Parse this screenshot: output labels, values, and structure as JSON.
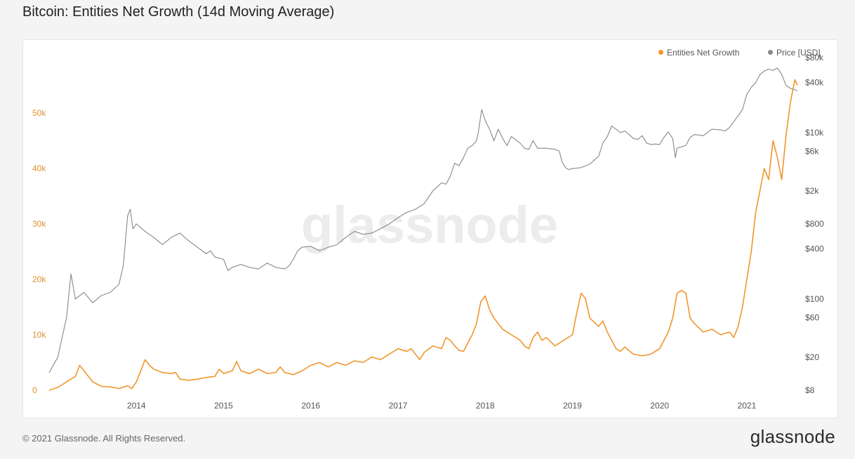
{
  "title": "Bitcoin: Entities Net Growth (14d Moving Average)",
  "watermark": "glassnode",
  "footer": {
    "copyright": "© 2021 Glassnode. All Rights Reserved.",
    "brand": "glassnode"
  },
  "colors": {
    "entities": "#f0962c",
    "price": "#888888",
    "left_axis_text": "#e0922f"
  },
  "chart_data": {
    "type": "line",
    "grid": false,
    "legend_position": "top-right",
    "x_ticks": [
      "2014",
      "2015",
      "2016",
      "2017",
      "2018",
      "2019",
      "2020",
      "2021"
    ],
    "x_range": [
      2013.0,
      2021.58
    ],
    "y_left": {
      "ticks": [
        {
          "value": 0,
          "label": "0"
        },
        {
          "value": 10000,
          "label": "10k"
        },
        {
          "value": 20000,
          "label": "20k"
        },
        {
          "value": 30000,
          "label": "30k"
        },
        {
          "value": 40000,
          "label": "40k"
        },
        {
          "value": 50000,
          "label": "50k"
        }
      ],
      "range": [
        0,
        60000
      ]
    },
    "y_right": {
      "scale": "log",
      "ticks": [
        {
          "value": 8,
          "label": "$8"
        },
        {
          "value": 20,
          "label": "$20"
        },
        {
          "value": 60,
          "label": "$60"
        },
        {
          "value": 100,
          "label": "$100"
        },
        {
          "value": 400,
          "label": "$400"
        },
        {
          "value": 800,
          "label": "$800"
        },
        {
          "value": 2000,
          "label": "$2k"
        },
        {
          "value": 6000,
          "label": "$6k"
        },
        {
          "value": 10000,
          "label": "$10k"
        },
        {
          "value": 40000,
          "label": "$40k"
        },
        {
          "value": 80000,
          "label": "$80k"
        }
      ],
      "range": [
        8,
        80000
      ]
    },
    "series": [
      {
        "name": "Entities Net Growth",
        "axis": "left",
        "points": [
          [
            2013.0,
            0
          ],
          [
            2013.1,
            500
          ],
          [
            2013.2,
            1500
          ],
          [
            2013.3,
            2500
          ],
          [
            2013.35,
            4500
          ],
          [
            2013.4,
            3500
          ],
          [
            2013.5,
            1500
          ],
          [
            2013.6,
            700
          ],
          [
            2013.7,
            600
          ],
          [
            2013.8,
            300
          ],
          [
            2013.9,
            800
          ],
          [
            2013.95,
            300
          ],
          [
            2014.0,
            1500
          ],
          [
            2014.05,
            3500
          ],
          [
            2014.1,
            5500
          ],
          [
            2014.15,
            4500
          ],
          [
            2014.2,
            3800
          ],
          [
            2014.3,
            3200
          ],
          [
            2014.4,
            3000
          ],
          [
            2014.45,
            3200
          ],
          [
            2014.5,
            2000
          ],
          [
            2014.6,
            1800
          ],
          [
            2014.7,
            2000
          ],
          [
            2014.8,
            2300
          ],
          [
            2014.9,
            2500
          ],
          [
            2014.95,
            3800
          ],
          [
            2015.0,
            3000
          ],
          [
            2015.1,
            3500
          ],
          [
            2015.15,
            5200
          ],
          [
            2015.2,
            3500
          ],
          [
            2015.3,
            3000
          ],
          [
            2015.4,
            3800
          ],
          [
            2015.5,
            3000
          ],
          [
            2015.6,
            3200
          ],
          [
            2015.65,
            4200
          ],
          [
            2015.7,
            3200
          ],
          [
            2015.8,
            2800
          ],
          [
            2015.9,
            3500
          ],
          [
            2016.0,
            4500
          ],
          [
            2016.1,
            5000
          ],
          [
            2016.2,
            4200
          ],
          [
            2016.3,
            5000
          ],
          [
            2016.4,
            4500
          ],
          [
            2016.5,
            5300
          ],
          [
            2016.6,
            5000
          ],
          [
            2016.7,
            6000
          ],
          [
            2016.8,
            5500
          ],
          [
            2016.9,
            6500
          ],
          [
            2017.0,
            7500
          ],
          [
            2017.1,
            7000
          ],
          [
            2017.15,
            7500
          ],
          [
            2017.2,
            6500
          ],
          [
            2017.25,
            5500
          ],
          [
            2017.3,
            6800
          ],
          [
            2017.4,
            8000
          ],
          [
            2017.5,
            7500
          ],
          [
            2017.55,
            9500
          ],
          [
            2017.6,
            9000
          ],
          [
            2017.65,
            8000
          ],
          [
            2017.7,
            7200
          ],
          [
            2017.75,
            7000
          ],
          [
            2017.8,
            8500
          ],
          [
            2017.85,
            10000
          ],
          [
            2017.9,
            12000
          ],
          [
            2017.95,
            16000
          ],
          [
            2018.0,
            17000
          ],
          [
            2018.05,
            14500
          ],
          [
            2018.1,
            13000
          ],
          [
            2018.2,
            11000
          ],
          [
            2018.3,
            10000
          ],
          [
            2018.4,
            9000
          ],
          [
            2018.45,
            8000
          ],
          [
            2018.5,
            7500
          ],
          [
            2018.55,
            9500
          ],
          [
            2018.6,
            10500
          ],
          [
            2018.65,
            9000
          ],
          [
            2018.7,
            9500
          ],
          [
            2018.8,
            8000
          ],
          [
            2018.9,
            9000
          ],
          [
            2019.0,
            10000
          ],
          [
            2019.05,
            14000
          ],
          [
            2019.1,
            17500
          ],
          [
            2019.15,
            16500
          ],
          [
            2019.2,
            13000
          ],
          [
            2019.3,
            11500
          ],
          [
            2019.35,
            12500
          ],
          [
            2019.4,
            10500
          ],
          [
            2019.5,
            7500
          ],
          [
            2019.55,
            7000
          ],
          [
            2019.6,
            7800
          ],
          [
            2019.7,
            6500
          ],
          [
            2019.8,
            6200
          ],
          [
            2019.9,
            6500
          ],
          [
            2019.95,
            7000
          ],
          [
            2020.0,
            7500
          ],
          [
            2020.05,
            9000
          ],
          [
            2020.1,
            10500
          ],
          [
            2020.15,
            13000
          ],
          [
            2020.2,
            17500
          ],
          [
            2020.25,
            18000
          ],
          [
            2020.3,
            17500
          ],
          [
            2020.35,
            13000
          ],
          [
            2020.4,
            12000
          ],
          [
            2020.5,
            10500
          ],
          [
            2020.6,
            11000
          ],
          [
            2020.7,
            10000
          ],
          [
            2020.8,
            10500
          ],
          [
            2020.85,
            9500
          ],
          [
            2020.9,
            11500
          ],
          [
            2020.95,
            15000
          ],
          [
            2021.0,
            20000
          ],
          [
            2021.05,
            25000
          ],
          [
            2021.1,
            32000
          ],
          [
            2021.15,
            36000
          ],
          [
            2021.2,
            40000
          ],
          [
            2021.25,
            38000
          ],
          [
            2021.3,
            45000
          ],
          [
            2021.35,
            42000
          ],
          [
            2021.4,
            38000
          ],
          [
            2021.45,
            46000
          ],
          [
            2021.5,
            52000
          ],
          [
            2021.55,
            56000
          ],
          [
            2021.58,
            55000
          ]
        ]
      },
      {
        "name": "Price [USD]",
        "axis": "right",
        "points": [
          [
            2013.0,
            13
          ],
          [
            2013.1,
            20
          ],
          [
            2013.2,
            60
          ],
          [
            2013.25,
            200
          ],
          [
            2013.3,
            100
          ],
          [
            2013.4,
            120
          ],
          [
            2013.5,
            90
          ],
          [
            2013.6,
            110
          ],
          [
            2013.7,
            120
          ],
          [
            2013.8,
            150
          ],
          [
            2013.85,
            250
          ],
          [
            2013.9,
            1000
          ],
          [
            2013.93,
            1200
          ],
          [
            2013.96,
            700
          ],
          [
            2014.0,
            800
          ],
          [
            2014.1,
            650
          ],
          [
            2014.2,
            550
          ],
          [
            2014.3,
            450
          ],
          [
            2014.4,
            550
          ],
          [
            2014.5,
            620
          ],
          [
            2014.6,
            500
          ],
          [
            2014.7,
            420
          ],
          [
            2014.8,
            350
          ],
          [
            2014.85,
            380
          ],
          [
            2014.9,
            320
          ],
          [
            2015.0,
            300
          ],
          [
            2015.05,
            220
          ],
          [
            2015.1,
            240
          ],
          [
            2015.2,
            260
          ],
          [
            2015.3,
            240
          ],
          [
            2015.4,
            230
          ],
          [
            2015.5,
            270
          ],
          [
            2015.6,
            240
          ],
          [
            2015.7,
            230
          ],
          [
            2015.75,
            250
          ],
          [
            2015.8,
            300
          ],
          [
            2015.85,
            380
          ],
          [
            2015.9,
            420
          ],
          [
            2016.0,
            430
          ],
          [
            2016.1,
            380
          ],
          [
            2016.2,
            420
          ],
          [
            2016.3,
            450
          ],
          [
            2016.4,
            550
          ],
          [
            2016.5,
            650
          ],
          [
            2016.6,
            600
          ],
          [
            2016.7,
            620
          ],
          [
            2016.8,
            700
          ],
          [
            2016.9,
            800
          ],
          [
            2017.0,
            950
          ],
          [
            2017.1,
            1100
          ],
          [
            2017.2,
            1200
          ],
          [
            2017.3,
            1400
          ],
          [
            2017.4,
            2000
          ],
          [
            2017.5,
            2500
          ],
          [
            2017.55,
            2400
          ],
          [
            2017.6,
            3000
          ],
          [
            2017.65,
            4300
          ],
          [
            2017.7,
            4000
          ],
          [
            2017.75,
            5000
          ],
          [
            2017.8,
            6500
          ],
          [
            2017.85,
            7000
          ],
          [
            2017.9,
            8000
          ],
          [
            2017.92,
            10000
          ],
          [
            2017.96,
            19000
          ],
          [
            2018.0,
            14000
          ],
          [
            2018.05,
            11000
          ],
          [
            2018.1,
            8000
          ],
          [
            2018.15,
            11000
          ],
          [
            2018.2,
            8500
          ],
          [
            2018.25,
            7000
          ],
          [
            2018.3,
            9000
          ],
          [
            2018.4,
            7500
          ],
          [
            2018.45,
            6500
          ],
          [
            2018.5,
            6300
          ],
          [
            2018.55,
            8000
          ],
          [
            2018.6,
            6500
          ],
          [
            2018.7,
            6500
          ],
          [
            2018.8,
            6300
          ],
          [
            2018.85,
            6000
          ],
          [
            2018.88,
            4500
          ],
          [
            2018.92,
            3800
          ],
          [
            2018.96,
            3600
          ],
          [
            2019.0,
            3700
          ],
          [
            2019.1,
            3800
          ],
          [
            2019.2,
            4200
          ],
          [
            2019.3,
            5200
          ],
          [
            2019.35,
            7500
          ],
          [
            2019.4,
            9000
          ],
          [
            2019.45,
            12000
          ],
          [
            2019.5,
            11000
          ],
          [
            2019.55,
            10000
          ],
          [
            2019.6,
            10500
          ],
          [
            2019.65,
            9500
          ],
          [
            2019.7,
            8500
          ],
          [
            2019.75,
            8300
          ],
          [
            2019.8,
            9200
          ],
          [
            2019.85,
            7500
          ],
          [
            2019.9,
            7200
          ],
          [
            2019.95,
            7300
          ],
          [
            2020.0,
            7200
          ],
          [
            2020.05,
            8800
          ],
          [
            2020.1,
            10200
          ],
          [
            2020.15,
            8500
          ],
          [
            2020.18,
            5000
          ],
          [
            2020.2,
            6500
          ],
          [
            2020.3,
            7000
          ],
          [
            2020.35,
            8800
          ],
          [
            2020.4,
            9500
          ],
          [
            2020.5,
            9200
          ],
          [
            2020.6,
            11000
          ],
          [
            2020.7,
            10800
          ],
          [
            2020.75,
            10500
          ],
          [
            2020.8,
            11500
          ],
          [
            2020.85,
            13500
          ],
          [
            2020.9,
            16000
          ],
          [
            2020.95,
            19000
          ],
          [
            2021.0,
            29000
          ],
          [
            2021.05,
            35000
          ],
          [
            2021.1,
            40000
          ],
          [
            2021.15,
            50000
          ],
          [
            2021.2,
            55000
          ],
          [
            2021.25,
            58000
          ],
          [
            2021.3,
            56000
          ],
          [
            2021.35,
            60000
          ],
          [
            2021.4,
            50000
          ],
          [
            2021.45,
            37000
          ],
          [
            2021.5,
            34000
          ],
          [
            2021.55,
            33000
          ],
          [
            2021.58,
            32000
          ]
        ]
      }
    ]
  }
}
